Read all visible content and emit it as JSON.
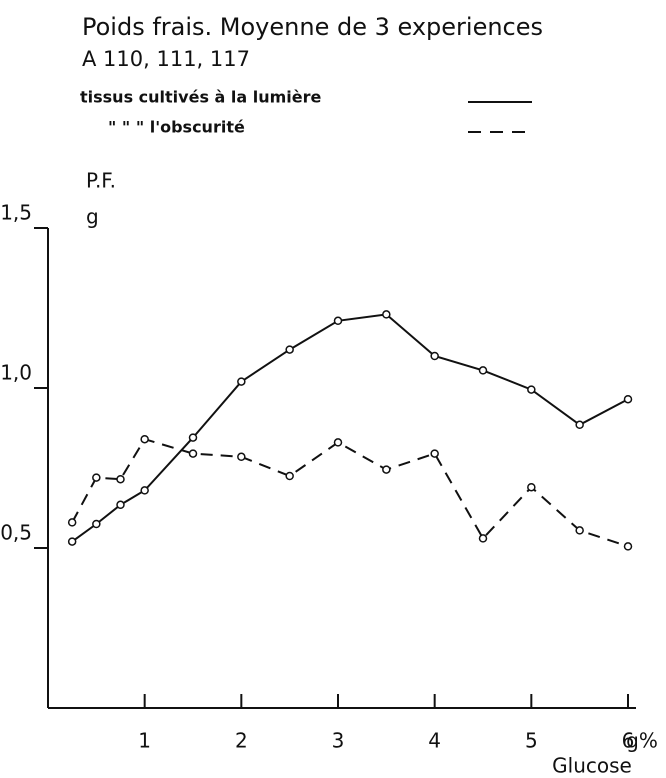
{
  "chart_data": {
    "type": "line",
    "title": "Poids frais. Moyenne de 3 experiences",
    "subtitle": "A 110, 111, 117",
    "y_label": "P.F.",
    "y_unit": "g",
    "x_unit": "g%",
    "x_label": "Glucose",
    "x": [
      0.25,
      0.5,
      0.75,
      1,
      1.5,
      2,
      2.5,
      3,
      3.5,
      4,
      4.5,
      5,
      5.5,
      6
    ],
    "series": [
      {
        "name": "tissus cultivés à la lumière",
        "color": "#111111",
        "dash": false,
        "values": [
          0.52,
          0.575,
          0.635,
          0.68,
          0.845,
          1.02,
          1.12,
          1.21,
          1.23,
          1.1,
          1.055,
          0.995,
          0.885,
          0.965
        ]
      },
      {
        "name": "\"      \"      \" l'obscurité",
        "color": "#111111",
        "dash": true,
        "values": [
          0.58,
          0.72,
          0.715,
          0.84,
          0.795,
          0.785,
          0.725,
          0.83,
          0.745,
          0.795,
          0.53,
          0.69,
          0.555,
          0.505
        ]
      }
    ],
    "xlim": [
      0,
      6
    ],
    "xticks": [
      1,
      2,
      3,
      4,
      5,
      6
    ],
    "ylim": [
      0,
      1.5
    ],
    "yticks": [
      {
        "value": 0.5,
        "label": "0,5"
      },
      {
        "value": 1,
        "label": "1,0"
      },
      {
        "value": 1.5,
        "label": "1,5"
      }
    ]
  }
}
